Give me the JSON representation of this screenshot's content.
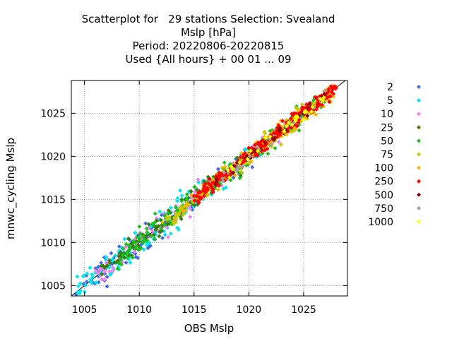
{
  "chart_data": {
    "type": "scatter",
    "title_lines": [
      "Scatterplot for   29 stations Selection: Svealand",
      "Mslp [hPa]",
      "Period: 20220806-20220815",
      "Used {All hours} + 00 01 ... 09"
    ],
    "xlabel": "OBS Mslp",
    "ylabel": "mnwc_cycling Mslp",
    "xlim": [
      1003.8,
      1029.0
    ],
    "ylim": [
      1003.8,
      1028.8
    ],
    "xticks": [
      1005,
      1010,
      1015,
      1020,
      1025
    ],
    "yticks": [
      1005,
      1010,
      1015,
      1020,
      1025
    ],
    "grid": true,
    "legend_position": "right",
    "diagonal": true,
    "series": [
      {
        "name": "2",
        "color": "#4169e1"
      },
      {
        "name": "5",
        "color": "#00e5ee"
      },
      {
        "name": "10",
        "color": "#ee82ee"
      },
      {
        "name": "25",
        "color": "#3a7d0a"
      },
      {
        "name": "50",
        "color": "#1ebf1e"
      },
      {
        "name": "75",
        "color": "#c8c800"
      },
      {
        "name": "100",
        "color": "#ffb300"
      },
      {
        "name": "250",
        "color": "#ff0000"
      },
      {
        "name": "500",
        "color": "#8b0000"
      },
      {
        "name": "750",
        "color": "#a0a0a0"
      },
      {
        "name": "1000",
        "color": "#ffff00"
      }
    ],
    "clusters": [
      {
        "series": 0,
        "x": [
          1004.2,
          1012.5
        ],
        "spread": 0.9,
        "n": 70
      },
      {
        "series": 0,
        "x": [
          1013.0,
          1020.5
        ],
        "spread": 0.7,
        "n": 30
      },
      {
        "series": 1,
        "x": [
          1004.3,
          1014.5
        ],
        "spread": 0.8,
        "n": 110
      },
      {
        "series": 1,
        "x": [
          1013.5,
          1022.0
        ],
        "spread": 0.6,
        "n": 60
      },
      {
        "series": 2,
        "x": [
          1006.0,
          1017.0
        ],
        "spread": 0.7,
        "n": 90
      },
      {
        "series": 2,
        "x": [
          1017.0,
          1023.5
        ],
        "spread": 0.5,
        "n": 40
      },
      {
        "series": 3,
        "x": [
          1006.5,
          1020.0
        ],
        "spread": 0.6,
        "n": 120
      },
      {
        "series": 4,
        "x": [
          1008.0,
          1027.0
        ],
        "spread": 0.6,
        "n": 200
      },
      {
        "series": 5,
        "x": [
          1012.0,
          1027.5
        ],
        "spread": 0.55,
        "n": 160
      },
      {
        "series": 6,
        "x": [
          1014.0,
          1028.0
        ],
        "spread": 0.5,
        "n": 130
      },
      {
        "series": 7,
        "x": [
          1015.0,
          1028.0
        ],
        "spread": 0.45,
        "n": 220
      },
      {
        "series": 8,
        "x": [
          1016.5,
          1027.5
        ],
        "spread": 0.25,
        "n": 40
      },
      {
        "series": 9,
        "x": [
          1017.0,
          1027.0
        ],
        "spread": 0.3,
        "n": 25
      },
      {
        "series": 10,
        "x": [
          1018.0,
          1027.0
        ],
        "spread": 0.3,
        "n": 30
      }
    ]
  }
}
